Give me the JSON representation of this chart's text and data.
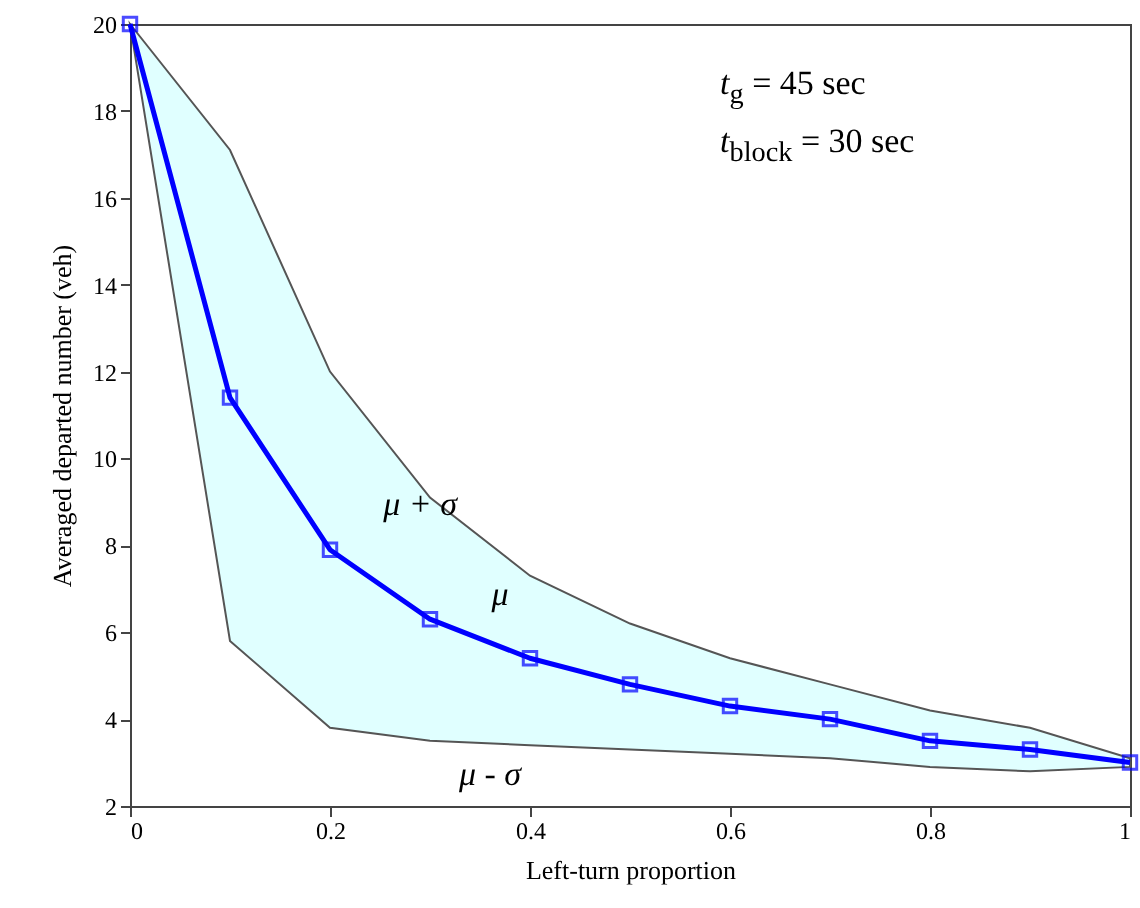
{
  "chart_data": {
    "type": "line",
    "xlabel": "Left-turn proportion",
    "ylabel": "Averaged departed number (veh)",
    "x": [
      0,
      0.1,
      0.2,
      0.3,
      0.4,
      0.5,
      0.6,
      0.7,
      0.8,
      0.9,
      1
    ],
    "series": [
      {
        "color": "#0000ff",
        "values": [
          20,
          11.4,
          7.9,
          6.3,
          5.4,
          4.8,
          4.3,
          4.0,
          3.5,
          3.3,
          3.0
        ],
        "upper": [
          20,
          17.1,
          12.0,
          9.1,
          7.3,
          6.2,
          5.4,
          4.8,
          4.2,
          3.8,
          3.1
        ],
        "lower": [
          20,
          5.8,
          3.8,
          3.5,
          3.4,
          3.3,
          3.2,
          3.1,
          2.9,
          2.8,
          2.9
        ]
      }
    ],
    "xlim": [
      0,
      1
    ],
    "xticks": [
      0,
      0.2,
      0.4,
      0.6,
      0.8,
      1
    ],
    "ylim": [
      2,
      20
    ],
    "yticks": [
      2,
      4,
      6,
      8,
      10,
      12,
      14,
      16,
      18,
      20
    ],
    "grid": false,
    "marker": "square",
    "line_style": "solid",
    "annotations": [
      {
        "text": "μ + σ",
        "x": 0.29,
        "y": 9.39
      },
      {
        "text": "μ",
        "x": 0.37,
        "y": 5.67
      },
      {
        "text": "μ - σ",
        "x": 0.36,
        "y": 3.44
      },
      "t$_{g}$ = 45 sec",
      "t$_{block}$ = 30 sec"
    ]
  }
}
